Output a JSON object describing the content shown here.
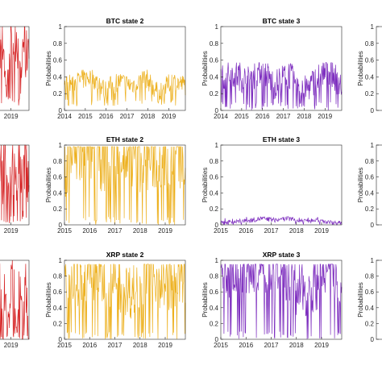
{
  "chart_data": [
    {
      "id": "p00",
      "type": "line",
      "title": "",
      "ylabel": "",
      "xlim": [
        2018.1,
        2019.85
      ],
      "ylim": [
        0,
        1
      ],
      "xticks": [
        2019
      ],
      "yticks": [],
      "color": "#d62728",
      "series": [
        {
          "values": [
            0.9,
            0.75,
            0.95,
            0.8,
            0.85,
            0.15,
            0.9,
            0.7,
            0.95,
            0.85,
            0.2,
            0.9,
            0.6,
            0.95
          ]
        }
      ]
    },
    {
      "id": "p01",
      "type": "line",
      "title": "BTC state 2",
      "ylabel": "Probabilities",
      "xlim": [
        2014,
        2019.8
      ],
      "ylim": [
        0,
        1
      ],
      "xticks": [
        2014,
        2015,
        2016,
        2017,
        2018,
        2019
      ],
      "yticks": [
        0,
        0.2,
        0.4,
        0.6,
        0.8,
        1
      ],
      "color": "#edb120",
      "series": [
        {
          "values": [
            0.3,
            0.35,
            0.4,
            0.25,
            0.35,
            0.3,
            0.4,
            0.2,
            0.35,
            0.3
          ]
        }
      ]
    },
    {
      "id": "p02",
      "type": "line",
      "title": "BTC state 3",
      "ylabel": "Probabilities",
      "xlim": [
        2014,
        2019.8
      ],
      "ylim": [
        0,
        1
      ],
      "xticks": [
        2014,
        2015,
        2016,
        2017,
        2018,
        2019
      ],
      "yticks": [
        0,
        0.2,
        0.4,
        0.6,
        0.8,
        1
      ],
      "color": "#7e2fbf",
      "series": [
        {
          "values": [
            0.4,
            0.45,
            0.35,
            0.5,
            0.3,
            0.45,
            0.2,
            0.35,
            0.5,
            0.3
          ]
        }
      ]
    },
    {
      "id": "p03",
      "type": "line",
      "title": "",
      "ylabel": "Probabilities",
      "xlim": [
        0,
        1
      ],
      "ylim": [
        0,
        1
      ],
      "xticks": [],
      "yticks": [
        0,
        0.2,
        0.4,
        0.6,
        0.8,
        1
      ],
      "color": "#3a9e5f",
      "series": [
        {
          "values": []
        }
      ]
    },
    {
      "id": "p10",
      "type": "line",
      "title": "",
      "ylabel": "",
      "xlim": [
        2018.1,
        2019.85
      ],
      "ylim": [
        0,
        1
      ],
      "xticks": [
        2019
      ],
      "yticks": [],
      "color": "#d62728",
      "series": [
        {
          "values": [
            0.9,
            0.2,
            0.95,
            0.6,
            0.9,
            0.1,
            0.85,
            0.3,
            0.95,
            0.5,
            0.9,
            0.2
          ]
        }
      ]
    },
    {
      "id": "p11",
      "type": "line",
      "title": "ETH state 2",
      "ylabel": "Probabilities",
      "xlim": [
        2015,
        2019.8
      ],
      "ylim": [
        0,
        1
      ],
      "xticks": [
        2015,
        2016,
        2017,
        2018,
        2019
      ],
      "yticks": [
        0,
        0.2,
        0.4,
        0.6,
        0.8,
        1
      ],
      "color": "#edb120",
      "series": [
        {
          "values": [
            0.85,
            0.9,
            0.95,
            0.9,
            0.92,
            0.9,
            0.88,
            0.9,
            0.93,
            0.9
          ]
        }
      ]
    },
    {
      "id": "p12",
      "type": "line",
      "title": "ETH state 3",
      "ylabel": "Probabilities",
      "xlim": [
        2015,
        2019.8
      ],
      "ylim": [
        0,
        1
      ],
      "xticks": [
        2015,
        2016,
        2017,
        2018,
        2019
      ],
      "yticks": [
        0,
        0.2,
        0.4,
        0.6,
        0.8,
        1
      ],
      "color": "#7e2fbf",
      "series": [
        {
          "values": [
            0.02,
            0.04,
            0.05,
            0.08,
            0.06,
            0.08,
            0.05,
            0.07,
            0.03,
            0.02
          ]
        }
      ]
    },
    {
      "id": "p13",
      "type": "line",
      "title": "",
      "ylabel": "Probabilities",
      "xlim": [
        0,
        1
      ],
      "ylim": [
        0,
        1
      ],
      "xticks": [],
      "yticks": [
        0,
        0.2,
        0.4,
        0.6,
        0.8,
        1
      ],
      "color": "#3a9e5f",
      "series": [
        {
          "values": []
        }
      ]
    },
    {
      "id": "p20",
      "type": "line",
      "title": "",
      "ylabel": "",
      "xlim": [
        2018.1,
        2019.85
      ],
      "ylim": [
        0,
        1
      ],
      "xticks": [
        2019
      ],
      "yticks": [],
      "color": "#d62728",
      "series": [
        {
          "values": [
            0.6,
            0.3,
            0.8,
            0.2,
            0.7,
            0.1,
            0.9,
            0.3,
            0.6,
            0.1,
            0.8,
            0.05
          ]
        }
      ]
    },
    {
      "id": "p21",
      "type": "line",
      "title": "XRP state 2",
      "ylabel": "Probabilities",
      "xlim": [
        2015,
        2019.8
      ],
      "ylim": [
        0,
        1
      ],
      "xticks": [
        2015,
        2016,
        2017,
        2018,
        2019
      ],
      "yticks": [
        0,
        0.2,
        0.4,
        0.6,
        0.8,
        1
      ],
      "color": "#edb120",
      "series": [
        {
          "values": [
            0.7,
            0.75,
            0.8,
            0.75,
            0.7,
            0.6,
            0.8,
            0.75,
            0.7,
            0.8
          ]
        }
      ]
    },
    {
      "id": "p22",
      "type": "line",
      "title": "XRP state 3",
      "ylabel": "Probabilities",
      "xlim": [
        2015,
        2019.8
      ],
      "ylim": [
        0,
        1
      ],
      "xticks": [
        2015,
        2016,
        2017,
        2018,
        2019
      ],
      "yticks": [
        0,
        0.2,
        0.4,
        0.6,
        0.8,
        1
      ],
      "color": "#7e2fbf",
      "series": [
        {
          "values": [
            0.8,
            0.85,
            0.9,
            0.92,
            0.9,
            0.75,
            0.6,
            0.7,
            0.85,
            0.8
          ]
        }
      ]
    },
    {
      "id": "p23",
      "type": "line",
      "title": "",
      "ylabel": "Probabilities",
      "xlim": [
        0,
        1
      ],
      "ylim": [
        0,
        1
      ],
      "xticks": [],
      "yticks": [
        0,
        0.2,
        0.4,
        0.6,
        0.8,
        1
      ],
      "color": "#3a9e5f",
      "series": [
        {
          "values": []
        }
      ]
    }
  ]
}
